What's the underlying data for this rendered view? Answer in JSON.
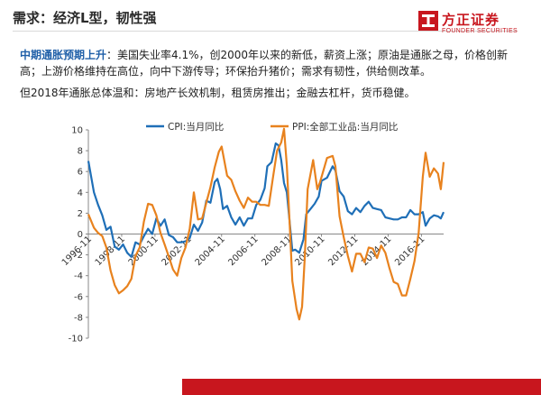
{
  "header": {
    "title": "需求：经济L型，韧性强"
  },
  "logo": {
    "name_cn": "方正证券",
    "name_en": "FOUNDER SECURITIES",
    "accent": "#c8161e"
  },
  "paragraph1": {
    "highlight": "中期通胀预期上升",
    "text": "：美国失业率4.1%，创2000年以来的新低，薪资上涨；原油是通胀之母，价格创新高；上游价格维持在高位，向中下游传导；环保抬升猪价；需求有韧性，供给侧改革。"
  },
  "paragraph2": {
    "text": "但2018年通胀总体温和：房地产长效机制，租赁房推出；金融去杠杆，货币稳健。"
  },
  "chart_data": {
    "type": "line",
    "title": "",
    "xlabel": "",
    "ylabel": "",
    "ylim": [
      -10,
      10
    ],
    "yticks": [
      -10,
      -8,
      -6,
      -4,
      -2,
      0,
      2,
      4,
      6,
      8,
      10
    ],
    "xticks": [
      "1996-11",
      "1998-11",
      "2000-11",
      "2002-11",
      "2004-11",
      "2006-11",
      "2008-11",
      "2010-11",
      "2012-11",
      "2014-11",
      "2016-11"
    ],
    "x_start": "1996-11",
    "x_end": "2018-03",
    "legend_position": "top",
    "series": [
      {
        "name": "CPI:当月同比",
        "color": "#1f6fb7",
        "points": [
          [
            "1996-11",
            7.0
          ],
          [
            "1997-03",
            4.0
          ],
          [
            "1997-06",
            2.8
          ],
          [
            "1997-09",
            1.8
          ],
          [
            "1997-12",
            0.4
          ],
          [
            "1998-03",
            0.7
          ],
          [
            "1998-06",
            -1.2
          ],
          [
            "1998-09",
            -1.5
          ],
          [
            "1998-12",
            -1.0
          ],
          [
            "1999-03",
            -1.8
          ],
          [
            "1999-06",
            -2.2
          ],
          [
            "1999-09",
            -0.8
          ],
          [
            "1999-12",
            -1.0
          ],
          [
            "2000-03",
            -0.2
          ],
          [
            "2000-06",
            0.5
          ],
          [
            "2000-09",
            0.0
          ],
          [
            "2000-12",
            1.5
          ],
          [
            "2001-03",
            0.8
          ],
          [
            "2001-06",
            1.4
          ],
          [
            "2001-09",
            -0.1
          ],
          [
            "2001-12",
            -0.3
          ],
          [
            "2002-03",
            -0.8
          ],
          [
            "2002-06",
            -0.8
          ],
          [
            "2002-09",
            -0.7
          ],
          [
            "2002-12",
            -0.4
          ],
          [
            "2003-03",
            0.9
          ],
          [
            "2003-06",
            0.3
          ],
          [
            "2003-09",
            1.1
          ],
          [
            "2003-12",
            3.2
          ],
          [
            "2004-03",
            3.0
          ],
          [
            "2004-06",
            5.0
          ],
          [
            "2004-08",
            5.3
          ],
          [
            "2004-10",
            4.3
          ],
          [
            "2004-12",
            2.4
          ],
          [
            "2005-03",
            2.7
          ],
          [
            "2005-06",
            1.6
          ],
          [
            "2005-09",
            0.9
          ],
          [
            "2005-12",
            1.6
          ],
          [
            "2006-03",
            0.8
          ],
          [
            "2006-06",
            1.5
          ],
          [
            "2006-09",
            1.5
          ],
          [
            "2006-12",
            2.8
          ],
          [
            "2007-03",
            3.3
          ],
          [
            "2007-06",
            4.4
          ],
          [
            "2007-08",
            6.5
          ],
          [
            "2007-11",
            6.9
          ],
          [
            "2008-02",
            8.7
          ],
          [
            "2008-04",
            8.5
          ],
          [
            "2008-06",
            7.1
          ],
          [
            "2008-08",
            4.9
          ],
          [
            "2008-10",
            4.0
          ],
          [
            "2008-12",
            1.2
          ],
          [
            "2009-02",
            -1.6
          ],
          [
            "2009-04",
            -1.5
          ],
          [
            "2009-07",
            -1.8
          ],
          [
            "2009-10",
            -0.5
          ],
          [
            "2009-12",
            1.9
          ],
          [
            "2010-03",
            2.4
          ],
          [
            "2010-06",
            2.9
          ],
          [
            "2010-09",
            3.6
          ],
          [
            "2010-11",
            5.1
          ],
          [
            "2011-03",
            5.4
          ],
          [
            "2011-07",
            6.5
          ],
          [
            "2011-09",
            6.1
          ],
          [
            "2011-12",
            4.1
          ],
          [
            "2012-03",
            3.6
          ],
          [
            "2012-06",
            2.2
          ],
          [
            "2012-09",
            1.9
          ],
          [
            "2012-12",
            2.5
          ],
          [
            "2013-03",
            2.1
          ],
          [
            "2013-06",
            2.7
          ],
          [
            "2013-09",
            3.1
          ],
          [
            "2013-12",
            2.5
          ],
          [
            "2014-03",
            2.4
          ],
          [
            "2014-06",
            2.3
          ],
          [
            "2014-09",
            1.6
          ],
          [
            "2014-12",
            1.5
          ],
          [
            "2015-03",
            1.4
          ],
          [
            "2015-06",
            1.4
          ],
          [
            "2015-09",
            1.6
          ],
          [
            "2015-12",
            1.6
          ],
          [
            "2016-03",
            2.3
          ],
          [
            "2016-06",
            1.9
          ],
          [
            "2016-09",
            1.9
          ],
          [
            "2016-12",
            2.1
          ],
          [
            "2017-02",
            0.8
          ],
          [
            "2017-05",
            1.5
          ],
          [
            "2017-08",
            1.8
          ],
          [
            "2017-11",
            1.7
          ],
          [
            "2018-01",
            1.5
          ],
          [
            "2018-03",
            2.1
          ]
        ]
      },
      {
        "name": "PPI:全部工业品:当月同比",
        "color": "#e8821e",
        "points": [
          [
            "1996-11",
            1.9
          ],
          [
            "1997-03",
            0.6
          ],
          [
            "1997-06",
            0.1
          ],
          [
            "1997-09",
            -0.2
          ],
          [
            "1997-12",
            -1.3
          ],
          [
            "1998-03",
            -3.5
          ],
          [
            "1998-06",
            -4.9
          ],
          [
            "1998-09",
            -5.7
          ],
          [
            "1998-12",
            -5.4
          ],
          [
            "1999-03",
            -5.0
          ],
          [
            "1999-06",
            -4.3
          ],
          [
            "1999-09",
            -2.1
          ],
          [
            "1999-12",
            -1.3
          ],
          [
            "2000-03",
            1.2
          ],
          [
            "2000-06",
            2.9
          ],
          [
            "2000-09",
            2.8
          ],
          [
            "2000-12",
            1.8
          ],
          [
            "2001-03",
            0.1
          ],
          [
            "2001-06",
            -1.0
          ],
          [
            "2001-09",
            -2.2
          ],
          [
            "2001-12",
            -3.4
          ],
          [
            "2002-03",
            -4.0
          ],
          [
            "2002-06",
            -2.3
          ],
          [
            "2002-09",
            -1.3
          ],
          [
            "2002-12",
            0.5
          ],
          [
            "2003-03",
            4.0
          ],
          [
            "2003-06",
            1.4
          ],
          [
            "2003-09",
            1.5
          ],
          [
            "2003-12",
            3.0
          ],
          [
            "2004-03",
            4.5
          ],
          [
            "2004-06",
            6.4
          ],
          [
            "2004-09",
            7.9
          ],
          [
            "2004-11",
            8.4
          ],
          [
            "2005-03",
            5.6
          ],
          [
            "2005-06",
            5.2
          ],
          [
            "2005-09",
            4.1
          ],
          [
            "2005-12",
            3.2
          ],
          [
            "2006-03",
            2.5
          ],
          [
            "2006-06",
            3.5
          ],
          [
            "2006-09",
            3.1
          ],
          [
            "2006-12",
            3.1
          ],
          [
            "2007-03",
            2.8
          ],
          [
            "2007-06",
            2.8
          ],
          [
            "2007-09",
            2.7
          ],
          [
            "2007-12",
            5.4
          ],
          [
            "2008-03",
            8.0
          ],
          [
            "2008-06",
            8.8
          ],
          [
            "2008-08",
            10.1
          ],
          [
            "2008-10",
            6.6
          ],
          [
            "2008-12",
            1.1
          ],
          [
            "2009-02",
            -4.5
          ],
          [
            "2009-05",
            -7.2
          ],
          [
            "2009-07",
            -8.2
          ],
          [
            "2009-09",
            -7.0
          ],
          [
            "2009-11",
            -2.1
          ],
          [
            "2010-01",
            4.3
          ],
          [
            "2010-05",
            7.1
          ],
          [
            "2010-08",
            4.3
          ],
          [
            "2010-10",
            5.0
          ],
          [
            "2011-03",
            7.3
          ],
          [
            "2011-07",
            7.5
          ],
          [
            "2011-09",
            6.5
          ],
          [
            "2011-12",
            1.7
          ],
          [
            "2012-03",
            -0.3
          ],
          [
            "2012-06",
            -2.1
          ],
          [
            "2012-09",
            -3.6
          ],
          [
            "2012-12",
            -1.9
          ],
          [
            "2013-03",
            -1.9
          ],
          [
            "2013-06",
            -2.7
          ],
          [
            "2013-09",
            -1.3
          ],
          [
            "2013-12",
            -1.4
          ],
          [
            "2014-03",
            -2.3
          ],
          [
            "2014-06",
            -1.1
          ],
          [
            "2014-09",
            -1.8
          ],
          [
            "2014-12",
            -3.3
          ],
          [
            "2015-03",
            -4.6
          ],
          [
            "2015-06",
            -4.8
          ],
          [
            "2015-09",
            -5.9
          ],
          [
            "2015-12",
            -5.9
          ],
          [
            "2016-03",
            -4.3
          ],
          [
            "2016-06",
            -2.6
          ],
          [
            "2016-09",
            0.1
          ],
          [
            "2016-12",
            5.5
          ],
          [
            "2017-02",
            7.8
          ],
          [
            "2017-05",
            5.5
          ],
          [
            "2017-08",
            6.3
          ],
          [
            "2017-11",
            5.8
          ],
          [
            "2018-01",
            4.3
          ],
          [
            "2018-03",
            6.9
          ]
        ]
      }
    ]
  }
}
